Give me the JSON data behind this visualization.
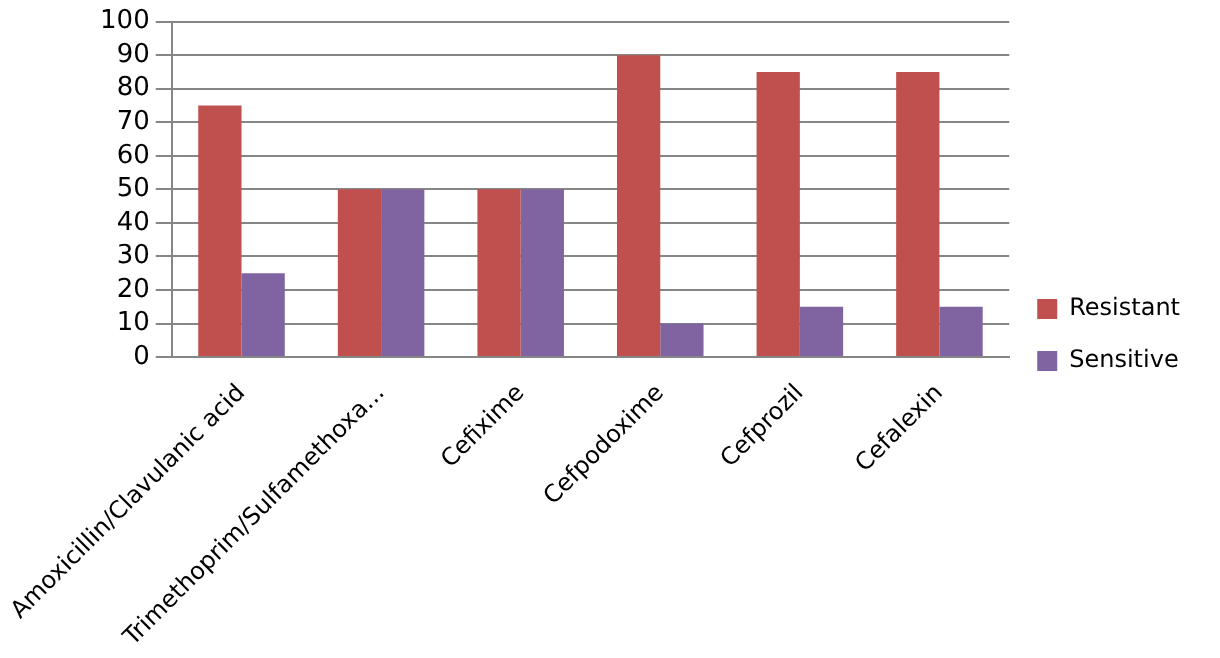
{
  "chart_data": {
    "type": "bar",
    "categories": [
      "Amoxicillin/Clavulanic acid",
      "Trimethoprim/Sulfamethoxa...",
      "Cefixime",
      "Cefpodoxime",
      "Cefprozil",
      "Cefalexin"
    ],
    "series": [
      {
        "name": "Resistant",
        "color": "#c0504d",
        "values": [
          75,
          50,
          50,
          90,
          85,
          85
        ]
      },
      {
        "name": "Sensitive",
        "color": "#8064a2",
        "values": [
          25,
          50,
          50,
          10,
          15,
          15
        ]
      }
    ],
    "ylim": [
      0,
      100
    ],
    "yticks": [
      0,
      10,
      20,
      30,
      40,
      50,
      60,
      70,
      80,
      90,
      100
    ],
    "grid": "y",
    "legend": "right"
  }
}
